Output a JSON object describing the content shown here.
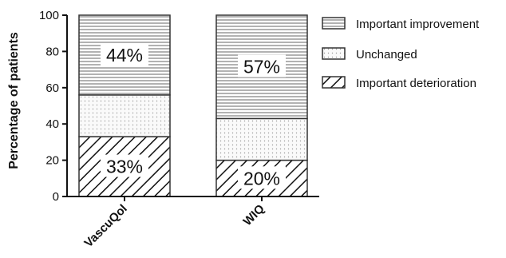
{
  "chart_data": {
    "type": "bar",
    "stacked": true,
    "categories": [
      "VascuQol",
      "WIQ"
    ],
    "series": [
      {
        "name": "Important deterioration",
        "values": [
          33,
          20
        ],
        "pattern": "diagonal-hatch"
      },
      {
        "name": "Unchanged",
        "values": [
          23,
          23
        ],
        "pattern": "dots"
      },
      {
        "name": "Important improvement",
        "values": [
          44,
          57
        ],
        "pattern": "horizontal-lines"
      }
    ],
    "data_labels": [
      {
        "category": "VascuQol",
        "series": "Important improvement",
        "text": "44%"
      },
      {
        "category": "VascuQol",
        "series": "Important deterioration",
        "text": "33%"
      },
      {
        "category": "WIQ",
        "series": "Important improvement",
        "text": "57%"
      },
      {
        "category": "WIQ",
        "series": "Important deterioration",
        "text": "20%"
      }
    ],
    "ylabel": "Percentage of patients",
    "ylim": [
      0,
      100
    ],
    "yticks": [
      0,
      20,
      40,
      60,
      80,
      100
    ],
    "legend_position": "right",
    "grid": false
  }
}
